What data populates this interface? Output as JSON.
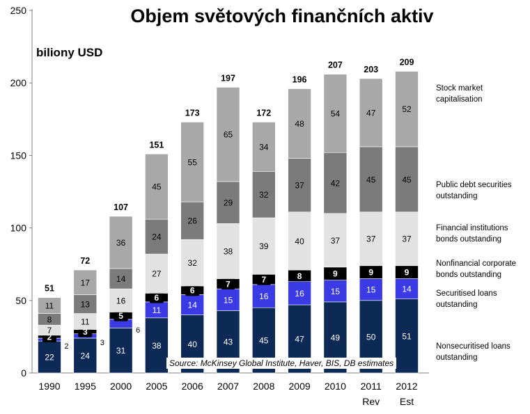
{
  "chart_data": {
    "type": "bar",
    "stacked": true,
    "title": "Objem světových finančních aktiv",
    "unit_label": "biliony USD",
    "source": "Source: McKinsey Global Institute, Haver, BIS, DB estimates",
    "categories": [
      "1990",
      "1995",
      "2000",
      "2005",
      "2006",
      "2007",
      "2008",
      "2009",
      "2010",
      "2011",
      "2012"
    ],
    "category_sublabels": [
      "",
      "",
      "",
      "",
      "",
      "",
      "",
      "",
      "",
      "Rev",
      "Est"
    ],
    "y_ticks": [
      "0",
      "50",
      "100",
      "150",
      "200",
      "250"
    ],
    "ylim": [
      0,
      250
    ],
    "totals": [
      51,
      72,
      107,
      151,
      173,
      197,
      172,
      196,
      207,
      203,
      209
    ],
    "series": [
      {
        "name": "Nonsecuritised loans outstanding",
        "color": "#0d2a57",
        "values": [
          22,
          24,
          31,
          38,
          40,
          43,
          45,
          47,
          49,
          50,
          51
        ]
      },
      {
        "name": "Securitised loans outstanding",
        "color": "#3b3be6",
        "values": [
          2,
          3,
          6,
          11,
          14,
          15,
          16,
          16,
          15,
          15,
          14
        ]
      },
      {
        "name": "Nonfinancial corporate bonds outstanding",
        "color": "#000000",
        "values": [
          2,
          3,
          5,
          6,
          6,
          7,
          7,
          8,
          9,
          9,
          9
        ]
      },
      {
        "name": "Financial institutions bonds outstanding",
        "color": "#e2e2e2",
        "values": [
          7,
          11,
          16,
          27,
          32,
          38,
          39,
          40,
          37,
          37,
          37
        ]
      },
      {
        "name": "Public debt securities outstanding",
        "color": "#7b7b7b",
        "values": [
          8,
          13,
          14,
          24,
          26,
          29,
          32,
          37,
          42,
          45,
          45
        ]
      },
      {
        "name": "Stock market capitalisation",
        "color": "#a8a8a8",
        "values": [
          11,
          17,
          36,
          45,
          55,
          65,
          34,
          48,
          54,
          47,
          52
        ]
      }
    ],
    "legend": [
      {
        "text": "Stock market\ncapitalisation"
      },
      {
        "text": "Public debt securities\noutstanding"
      },
      {
        "text": "Financial institutions\nbonds outstanding"
      },
      {
        "text": "Nonfinancial corporate\nbonds outstanding"
      },
      {
        "text": "Securitised loans\noutstanding"
      },
      {
        "text": "Nonsecuritised loans\noutstanding"
      }
    ],
    "legend_placement": "right",
    "grid": false
  }
}
